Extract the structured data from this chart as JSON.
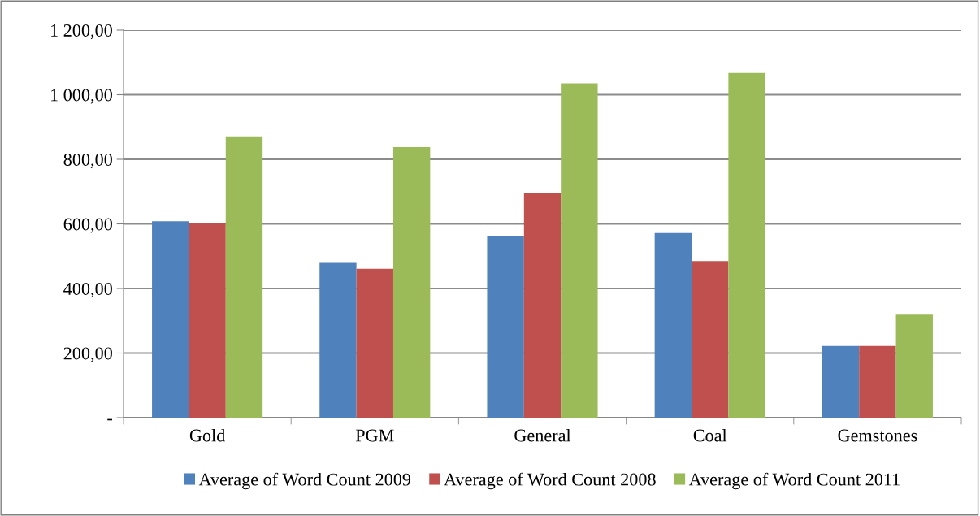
{
  "chart_data": {
    "type": "bar",
    "categories": [
      "Gold",
      "PGM",
      "General",
      "Coal",
      "Gemstones"
    ],
    "series": [
      {
        "name": "Average of Word Count 2009",
        "color": "#4f81bd",
        "values": [
          608,
          479,
          563,
          572,
          222
        ]
      },
      {
        "name": "Average of Word Count 2008",
        "color": "#c0504d",
        "values": [
          603,
          461,
          696,
          485,
          222
        ]
      },
      {
        "name": "Average of Word Count 2011",
        "color": "#9bbb59",
        "values": [
          871,
          838,
          1035,
          1067,
          319
        ]
      }
    ],
    "ylim": [
      0,
      1200
    ],
    "yticks": [
      {
        "value": 0,
        "label": "-"
      },
      {
        "value": 200,
        "label": "200,00"
      },
      {
        "value": 400,
        "label": "400,00"
      },
      {
        "value": 600,
        "label": "600,00"
      },
      {
        "value": 800,
        "label": "800,00"
      },
      {
        "value": 1000,
        "label": "1 000,00"
      },
      {
        "value": 1200,
        "label": "1 200,00"
      }
    ],
    "grid": "y",
    "legend": "bottom"
  }
}
